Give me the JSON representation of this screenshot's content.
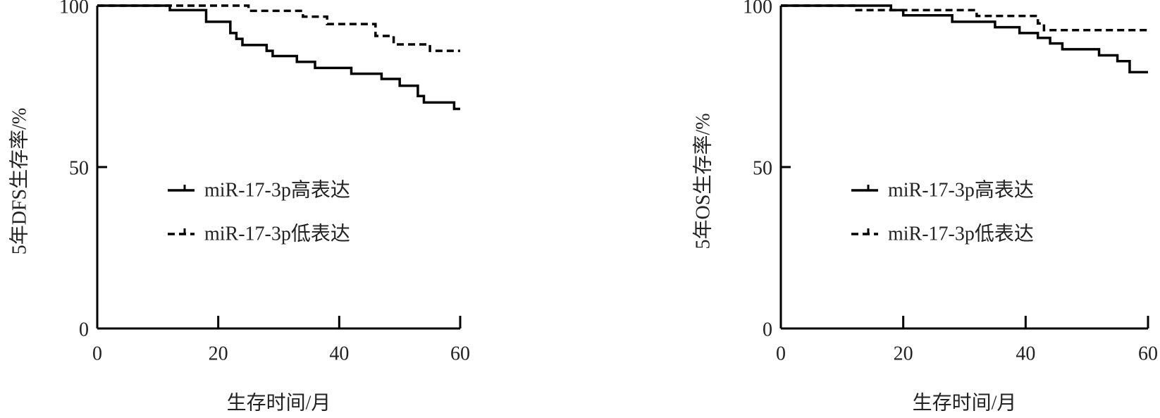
{
  "chart_data": [
    {
      "type": "step",
      "x_label": "生存时间/月",
      "y_label": "5年DFS生存率/%",
      "xlim": [
        0,
        60
      ],
      "ylim": [
        0,
        100
      ],
      "xticks": [
        0,
        20,
        40,
        60
      ],
      "yticks": [
        0,
        50,
        100
      ],
      "legend": "left",
      "series": [
        {
          "name": "miR-17-3p高表达",
          "color": "#000000",
          "style": "solid",
          "x": [
            0,
            12,
            18,
            22,
            23,
            24,
            28,
            29,
            33,
            36,
            42,
            47,
            50,
            53,
            54,
            59,
            60
          ],
          "values": [
            100,
            98.6,
            95,
            91.5,
            89.7,
            87.8,
            86,
            84.4,
            82.6,
            80.7,
            78.9,
            77.3,
            75.2,
            72,
            70,
            68,
            68
          ]
        },
        {
          "name": "miR-17-3p低表达",
          "color": "#000000",
          "style": "dashed",
          "x": [
            0,
            25,
            34,
            38,
            46,
            49,
            55,
            60
          ],
          "values": [
            100,
            98.4,
            96.6,
            94.3,
            90.6,
            88,
            86,
            86
          ]
        }
      ]
    },
    {
      "type": "step",
      "x_label": "生存时间/月",
      "y_label": "5年OS生存率/%",
      "xlim": [
        0,
        60
      ],
      "ylim": [
        0,
        100
      ],
      "xticks": [
        0,
        20,
        40,
        60
      ],
      "yticks": [
        0,
        50,
        100
      ],
      "legend": "left",
      "series": [
        {
          "name": "miR-17-3p高表达",
          "color": "#000000",
          "style": "solid",
          "x": [
            0,
            18,
            20,
            28,
            35,
            39,
            42,
            44,
            46,
            52,
            55,
            57,
            60
          ],
          "values": [
            100,
            98.6,
            97,
            95,
            93.3,
            91.5,
            90,
            88.3,
            86.5,
            84.6,
            82.8,
            79.4,
            79.4
          ]
        },
        {
          "name": "miR-17-3p低表达",
          "color": "#000000",
          "style": "dashed",
          "x": [
            0,
            12,
            32,
            42,
            43,
            60
          ],
          "values": [
            100,
            98.6,
            96.8,
            94.5,
            92.4,
            92.4
          ]
        }
      ]
    }
  ]
}
